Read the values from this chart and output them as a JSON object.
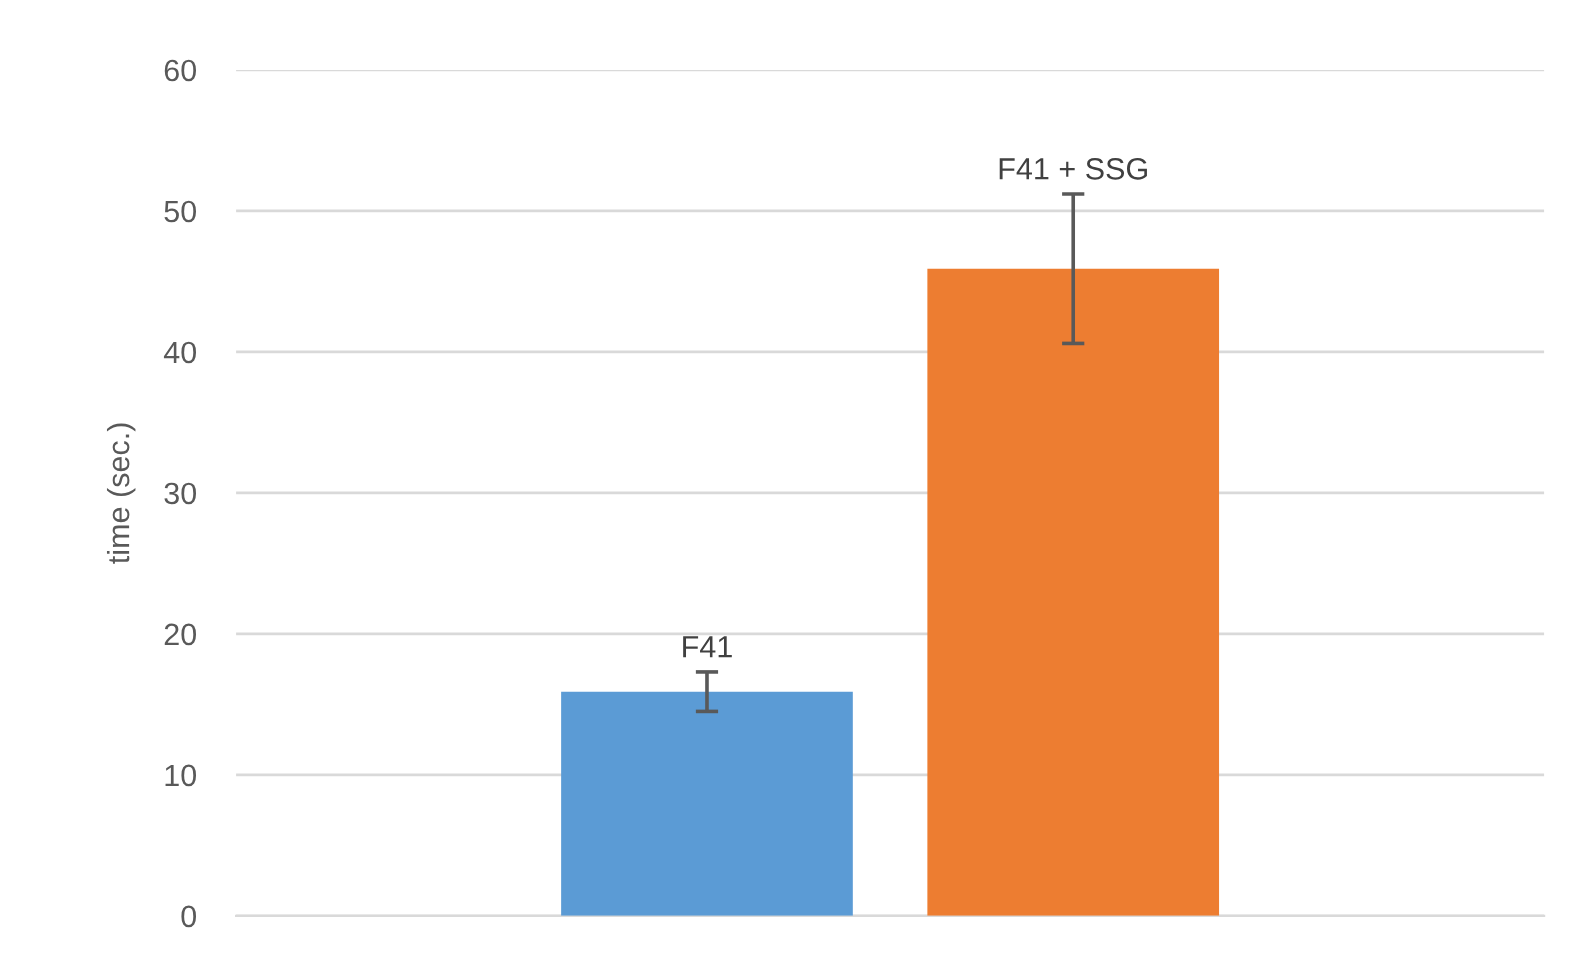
{
  "chart_data": {
    "type": "bar",
    "ylabel": "time (sec.)",
    "categories": [
      null
    ],
    "series": [
      {
        "name": "F41",
        "color": "#5b9bd5",
        "values": [
          15.9
        ],
        "errors": [
          1.4
        ]
      },
      {
        "name": "F41 + SSG",
        "color": "#ed7d31",
        "values": [
          45.9
        ],
        "errors": [
          5.3
        ]
      }
    ],
    "ylim": [
      0,
      60
    ],
    "yticks": [
      0,
      10,
      20,
      30,
      40,
      50,
      60
    ],
    "grid": "y",
    "legend": false
  }
}
